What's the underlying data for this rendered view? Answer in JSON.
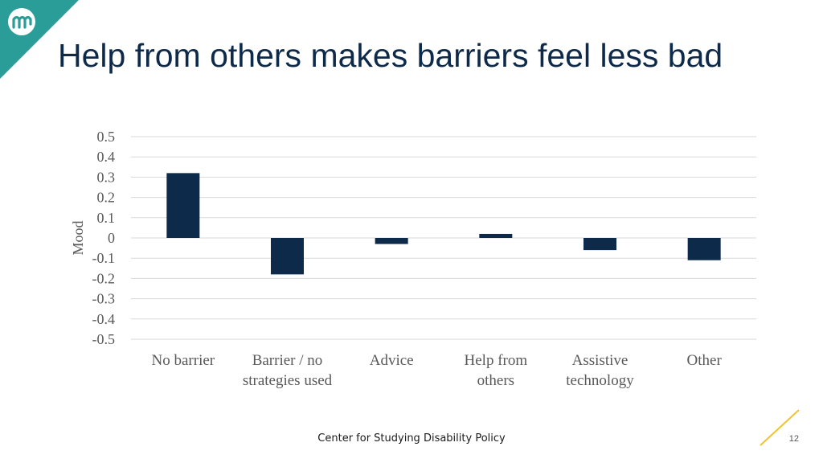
{
  "slide": {
    "title": "Help from others makes barriers feel less bad",
    "footer": "Center for Studying Disability Policy",
    "page_number": "12"
  },
  "colors": {
    "bar": "#0e2a4a",
    "logo_teal": "#2a9d98",
    "accent_line": "#f2c230",
    "gridline": "#d9d9d9"
  },
  "icons": {
    "logo": "mathematica-logo-icon"
  },
  "chart_data": {
    "type": "bar",
    "title": "",
    "xlabel": "",
    "ylabel": "Mood",
    "ylim": [
      -0.5,
      0.5
    ],
    "yticks": [
      "0.5",
      "0.4",
      "0.3",
      "0.2",
      "0.1",
      "0",
      "-0.1",
      "-0.2",
      "-0.3",
      "-0.4",
      "-0.5"
    ],
    "ytick_values": [
      0.5,
      0.4,
      0.3,
      0.2,
      0.1,
      0,
      -0.1,
      -0.2,
      -0.3,
      -0.4,
      -0.5
    ],
    "categories": [
      [
        "No barrier"
      ],
      [
        "Barrier / no",
        "strategies used"
      ],
      [
        "Advice"
      ],
      [
        "Help from",
        "others"
      ],
      [
        "Assistive",
        "technology"
      ],
      [
        "Other"
      ]
    ],
    "values": [
      0.32,
      -0.18,
      -0.03,
      0.02,
      -0.06,
      -0.11
    ],
    "grid": true,
    "legend": "none"
  }
}
